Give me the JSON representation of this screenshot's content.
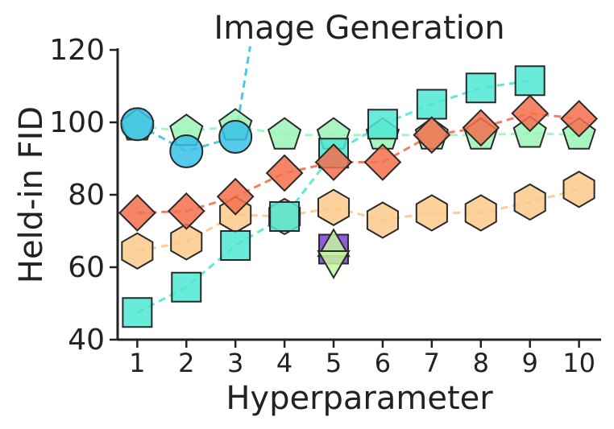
{
  "chart_data": {
    "type": "scatter",
    "title": "Image Generation",
    "xlabel": "Hyperparameter",
    "ylabel": "Held-in FID",
    "x_ticks": [
      1,
      2,
      3,
      4,
      5,
      6,
      7,
      8,
      9,
      10
    ],
    "y_ticks": [
      40,
      60,
      80,
      100,
      120
    ],
    "xlim": [
      0.6,
      10.45
    ],
    "ylim": [
      40,
      120
    ],
    "grid": false,
    "legend": "none",
    "series": [
      {
        "marker": "pentagon",
        "color": "#9af5b8",
        "linestyle": "dashed",
        "points": [
          [
            1,
            99
          ],
          [
            2,
            97.5
          ],
          [
            3,
            99
          ],
          [
            4,
            96.5
          ],
          [
            5,
            96.5
          ],
          [
            6,
            96.5
          ],
          [
            7,
            96.5
          ],
          [
            8,
            96.5
          ],
          [
            9,
            97
          ],
          [
            10,
            96.5
          ]
        ]
      },
      {
        "marker": "hexagon",
        "color": "#fcc98a",
        "linestyle": "dashed",
        "points": [
          [
            1,
            64.5
          ],
          [
            2,
            67
          ],
          [
            3,
            74.5
          ],
          [
            4,
            74
          ],
          [
            5,
            76.5
          ],
          [
            6,
            73
          ],
          [
            7,
            75
          ],
          [
            8,
            75
          ],
          [
            9,
            78
          ],
          [
            10,
            81.5
          ]
        ]
      },
      {
        "marker": "square",
        "color": "#4de8d2",
        "linestyle": "dashed",
        "points": [
          [
            1,
            47.5
          ],
          [
            2,
            54.5
          ],
          [
            3,
            66
          ],
          [
            4,
            74
          ],
          [
            5,
            91.5
          ],
          [
            6,
            99.5
          ],
          [
            7,
            105
          ],
          [
            8,
            109.5
          ],
          [
            9,
            111.5
          ]
        ]
      },
      {
        "marker": "diamond",
        "color": "#f5704e",
        "linestyle": "dashed",
        "points": [
          [
            1,
            75
          ],
          [
            2,
            75.5
          ],
          [
            3,
            79.5
          ],
          [
            4,
            86
          ],
          [
            5,
            89
          ],
          [
            6,
            89
          ],
          [
            7,
            96.5
          ],
          [
            8,
            98.5
          ],
          [
            9,
            102.5
          ],
          [
            10,
            101
          ]
        ]
      },
      {
        "marker": "circle",
        "color": "#38c1e8",
        "linestyle": "dashed",
        "points": [
          [
            1,
            99.5
          ],
          [
            2,
            92
          ],
          [
            3,
            96
          ]
        ],
        "trend_to": [
          3.3,
          121
        ]
      },
      {
        "marker": "square",
        "color": "#7a3fd6",
        "points": [
          [
            5,
            65
          ]
        ]
      },
      {
        "marker": "triangle-up",
        "color": "#c7f5a0",
        "points": [
          [
            5,
            65.5
          ]
        ]
      },
      {
        "marker": "triangle-down",
        "color": "#c7f5a0",
        "points": [
          [
            5,
            62
          ]
        ]
      }
    ]
  }
}
